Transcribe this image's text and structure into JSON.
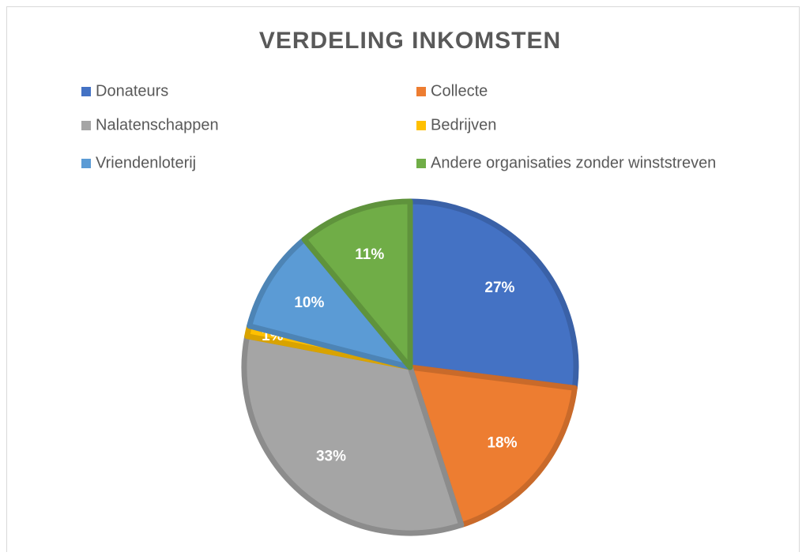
{
  "chart_data": {
    "type": "pie",
    "title": "VERDELING INKOMSTEN",
    "categories": [
      "Donateurs",
      "Collecte",
      "Nalatenschappen",
      "Bedrijven",
      "Vriendenloterij",
      "Andere organisaties zonder winststreven"
    ],
    "values": [
      27,
      18,
      33,
      1,
      10,
      11
    ],
    "value_labels": [
      "27%",
      "18%",
      "33%",
      "1%",
      "10%",
      "11%"
    ],
    "colors": [
      "#4472c4",
      "#ed7d31",
      "#a5a5a5",
      "#ffc000",
      "#5b9bd5",
      "#70ad47"
    ],
    "legend": "top"
  }
}
